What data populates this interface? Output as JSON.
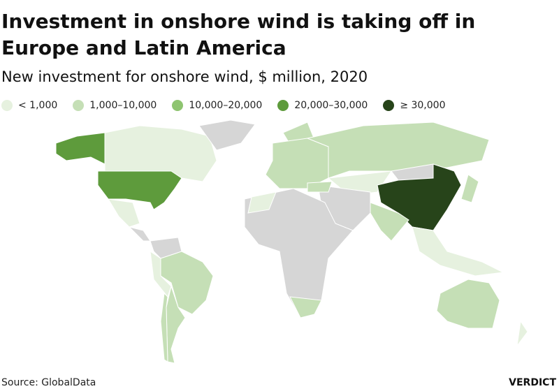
{
  "title": "Investment in onshore wind is taking off in Europe and Latin America",
  "subtitle": "New investment for onshore wind, $ million, 2020",
  "legend": [
    {
      "label": "< 1,000",
      "color": "#e6f1df"
    },
    {
      "label": "1,000–10,000",
      "color": "#c5dfb6"
    },
    {
      "label": "10,000–20,000",
      "color": "#8ec470"
    },
    {
      "label": "20,000–30,000",
      "color": "#5e9b3c"
    },
    {
      "label": "≥ 30,000",
      "color": "#27441a"
    }
  ],
  "no_data_color": "#d6d6d6",
  "source": "Source: GlobalData",
  "brand": "VERDICT"
}
